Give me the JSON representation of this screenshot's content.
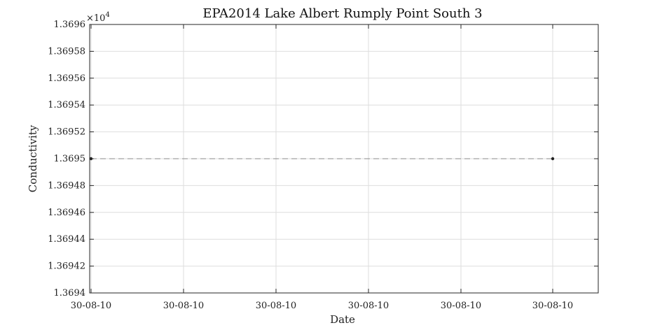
{
  "chart_data": {
    "type": "line",
    "title": "EPA2014 Lake Albert Rumply Point South 3",
    "xlabel": "Date",
    "ylabel": "Conductivity",
    "y_exponent_label": "×10",
    "y_exponent_power": "4",
    "ylim": [
      1.3694,
      1.3696
    ],
    "y_ticks": [
      "1.3694",
      "1.36942",
      "1.36944",
      "1.36946",
      "1.36948",
      "1.3695",
      "1.36952",
      "1.36954",
      "1.36956",
      "1.36958",
      "1.3696"
    ],
    "x_ticks": [
      "30-08-10",
      "30-08-10",
      "30-08-10",
      "30-08-10",
      "30-08-10",
      "30-08-10"
    ],
    "grid": true,
    "series": [
      {
        "x": [
          "30-08-10",
          "30-08-10"
        ],
        "y": [
          1.3695,
          1.3695
        ],
        "color": "#222222",
        "line_color": "#888888",
        "line_style": "dashed"
      }
    ]
  }
}
